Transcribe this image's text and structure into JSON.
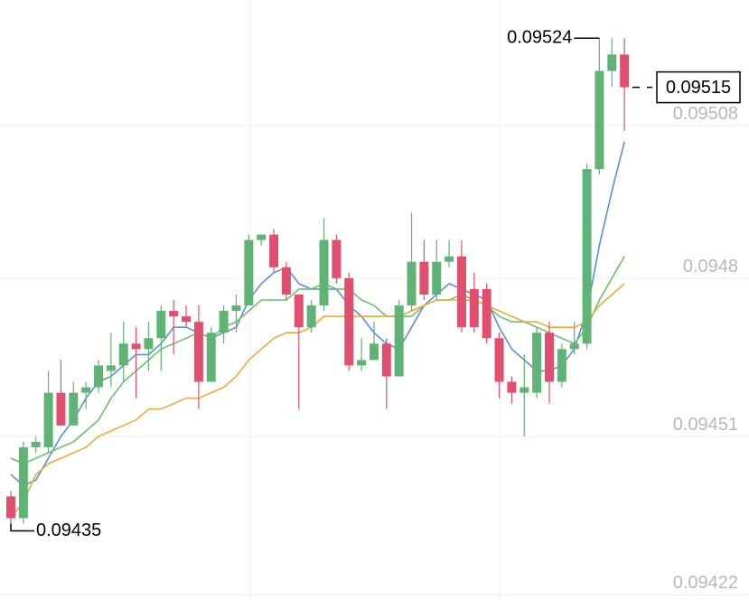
{
  "chart_data": {
    "type": "candlestick",
    "up_color": "#5fb375",
    "down_color": "#e0506e",
    "grid": true,
    "ylim": [
      0.09421,
      0.09531
    ],
    "yticks": [
      0.09422,
      0.09451,
      0.0948,
      0.09508
    ],
    "open": [
      0.0944,
      0.09436,
      0.09449,
      0.09449,
      0.09459,
      0.09453,
      0.09459,
      0.0946,
      0.09463,
      0.09464,
      0.09468,
      0.09467,
      0.09469,
      0.09474,
      0.09473,
      0.09472,
      0.09461,
      0.0947,
      0.09474,
      0.09475,
      0.09487,
      0.09488,
      0.09482,
      0.09477,
      0.09471,
      0.09475,
      0.09487,
      0.0948,
      0.09464,
      0.09465,
      0.09468,
      0.09462,
      0.09475,
      0.09483,
      0.09477,
      0.09483,
      0.09484,
      0.09478,
      0.09478,
      0.09469,
      0.09461,
      0.09459,
      0.09459,
      0.0947,
      0.09461,
      0.09467,
      0.09468,
      0.095,
      0.09518,
      0.09521
    ],
    "high": [
      0.09441,
      0.0945,
      0.09451,
      0.09463,
      0.09465,
      0.09461,
      0.09461,
      0.09465,
      0.0947,
      0.09472,
      0.09471,
      0.09472,
      0.09475,
      0.09476,
      0.09475,
      0.09475,
      0.09471,
      0.09475,
      0.09477,
      0.09488,
      0.09488,
      0.09489,
      0.09483,
      0.09477,
      0.09476,
      0.09491,
      0.09488,
      0.09481,
      0.09469,
      0.09472,
      0.09469,
      0.09476,
      0.09492,
      0.09487,
      0.09487,
      0.09487,
      0.09487,
      0.09481,
      0.09479,
      0.0947,
      0.09462,
      0.09466,
      0.09471,
      0.09472,
      0.09468,
      0.09472,
      0.09501,
      0.09524,
      0.09524,
      0.09524
    ],
    "low": [
      0.09435,
      0.09435,
      0.09448,
      0.09448,
      0.09453,
      0.09453,
      0.09456,
      0.09459,
      0.0946,
      0.09461,
      0.09458,
      0.09463,
      0.09463,
      0.09466,
      0.09471,
      0.09456,
      0.09461,
      0.09468,
      0.0947,
      0.09475,
      0.09486,
      0.09481,
      0.09476,
      0.09456,
      0.0947,
      0.09474,
      0.09479,
      0.09463,
      0.09463,
      0.09465,
      0.09456,
      0.09462,
      0.09474,
      0.09476,
      0.09476,
      0.09482,
      0.0947,
      0.0947,
      0.09468,
      0.09458,
      0.09457,
      0.09451,
      0.09458,
      0.09457,
      0.0946,
      0.09466,
      0.09467,
      0.09499,
      0.09515,
      0.09507
    ],
    "close": [
      0.09436,
      0.09449,
      0.0945,
      0.09459,
      0.09453,
      0.09459,
      0.0946,
      0.09464,
      0.09464,
      0.09468,
      0.09467,
      0.09469,
      0.09474,
      0.09473,
      0.09472,
      0.09461,
      0.0947,
      0.09474,
      0.09475,
      0.09487,
      0.09488,
      0.09482,
      0.09477,
      0.09471,
      0.09475,
      0.09487,
      0.0948,
      0.09464,
      0.09465,
      0.09468,
      0.09462,
      0.09475,
      0.09483,
      0.09477,
      0.09483,
      0.09484,
      0.09471,
      0.09471,
      0.09469,
      0.09461,
      0.09459,
      0.0946,
      0.0947,
      0.09461,
      0.09467,
      0.09468,
      0.095,
      0.09518,
      0.09521,
      0.09515
    ],
    "lines": [
      {
        "color": "#5b8fd9",
        "values": [
          0.09444,
          0.09442,
          0.09443,
          0.09447,
          0.09451,
          0.09454,
          0.09458,
          0.09461,
          0.09462,
          0.09464,
          0.09466,
          0.09466,
          0.09468,
          0.09471,
          0.09471,
          0.0947,
          0.09469,
          0.0947,
          0.09471,
          0.09476,
          0.09479,
          0.09481,
          0.09482,
          0.09479,
          0.09478,
          0.09478,
          0.09478,
          0.09475,
          0.09473,
          0.0947,
          0.09468,
          0.09467,
          0.09471,
          0.09475,
          0.09477,
          0.09479,
          0.09478,
          0.09477,
          0.09476,
          0.09471,
          0.09467,
          0.09465,
          0.09463,
          0.09463,
          0.09464,
          0.09467,
          0.09474,
          0.09486,
          0.09496,
          0.09505
        ]
      },
      {
        "color": "#6cbf6a",
        "values": [
          0.09447,
          0.09446,
          0.09447,
          0.09448,
          0.09449,
          0.0945,
          0.09452,
          0.09454,
          0.09458,
          0.09461,
          0.09463,
          0.09465,
          0.09467,
          0.09468,
          0.09469,
          0.0947,
          0.09469,
          0.09471,
          0.09472,
          0.09474,
          0.09476,
          0.09476,
          0.09476,
          0.09478,
          0.09478,
          0.09479,
          0.09478,
          0.09478,
          0.09476,
          0.09475,
          0.09473,
          0.09473,
          0.09473,
          0.09475,
          0.09476,
          0.09476,
          0.09477,
          0.09476,
          0.09475,
          0.09473,
          0.09472,
          0.09472,
          0.09471,
          0.0947,
          0.09469,
          0.09468,
          0.09471,
          0.09476,
          0.0948,
          0.09484
        ]
      },
      {
        "color": "#f0a93b",
        "values": [
          0.09436,
          0.09439,
          0.09444,
          0.09446,
          0.09447,
          0.09448,
          0.09449,
          0.09451,
          0.09452,
          0.09453,
          0.09454,
          0.09456,
          0.09456,
          0.09457,
          0.09458,
          0.09458,
          0.09459,
          0.0946,
          0.09462,
          0.09465,
          0.09467,
          0.09469,
          0.0947,
          0.0947,
          0.09471,
          0.09473,
          0.09473,
          0.09473,
          0.09473,
          0.09473,
          0.09473,
          0.09473,
          0.09474,
          0.09475,
          0.09476,
          0.09476,
          0.09476,
          0.09476,
          0.09475,
          0.09474,
          0.09473,
          0.09472,
          0.09472,
          0.09471,
          0.09471,
          0.09471,
          0.09472,
          0.09475,
          0.09477,
          0.09479
        ]
      }
    ],
    "max_label": 0.09524,
    "min_label": 0.09435,
    "last_price": 0.09515
  }
}
